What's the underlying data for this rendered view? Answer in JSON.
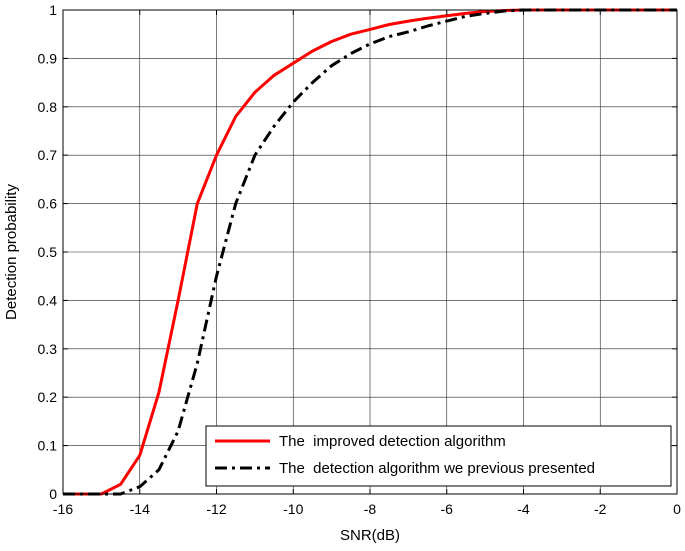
{
  "chart_data": {
    "type": "line",
    "title": "",
    "xlabel": "SNR(dB)",
    "ylabel": "Detection probability",
    "xlim": [
      -16,
      0
    ],
    "ylim": [
      0,
      1
    ],
    "xticks": [
      -16,
      -14,
      -12,
      -10,
      -8,
      -6,
      -4,
      -2,
      0
    ],
    "yticks": [
      0,
      0.1,
      0.2,
      0.3,
      0.4,
      0.5,
      0.6,
      0.7,
      0.8,
      0.9,
      1
    ],
    "grid": true,
    "legend_position": "bottom-right",
    "series": [
      {
        "name": "The  improved detection algorithm",
        "color": "#ff0000",
        "style": "solid",
        "x": [
          -16,
          -15.5,
          -15,
          -14.5,
          -14,
          -13.5,
          -13,
          -12.5,
          -12,
          -11.5,
          -11,
          -10.5,
          -10,
          -9.5,
          -9,
          -8.5,
          -8,
          -7.5,
          -7,
          -6.5,
          -6,
          -5.5,
          -5,
          -4.5,
          -4,
          -3,
          -2,
          -1,
          0
        ],
        "y": [
          0,
          0,
          0,
          0.02,
          0.08,
          0.21,
          0.4,
          0.6,
          0.7,
          0.78,
          0.83,
          0.865,
          0.89,
          0.915,
          0.935,
          0.95,
          0.96,
          0.97,
          0.977,
          0.983,
          0.988,
          0.993,
          0.997,
          0.999,
          1,
          1,
          1,
          1,
          1
        ]
      },
      {
        "name": "The  detection algorithm we previous presented",
        "color": "#000000",
        "style": "dashdot",
        "x": [
          -16,
          -15.5,
          -15,
          -14.5,
          -14,
          -13.5,
          -13,
          -12.5,
          -12,
          -11.5,
          -11,
          -10.5,
          -10,
          -9.5,
          -9,
          -8.5,
          -8,
          -7.5,
          -7,
          -6.5,
          -6,
          -5.5,
          -5,
          -4.5,
          -4,
          -3,
          -2,
          -1,
          0
        ],
        "y": [
          0,
          0,
          0,
          0,
          0.015,
          0.05,
          0.13,
          0.27,
          0.45,
          0.6,
          0.7,
          0.76,
          0.81,
          0.85,
          0.885,
          0.91,
          0.93,
          0.945,
          0.955,
          0.967,
          0.977,
          0.987,
          0.993,
          0.998,
          1,
          1,
          1,
          1,
          1
        ]
      }
    ]
  }
}
